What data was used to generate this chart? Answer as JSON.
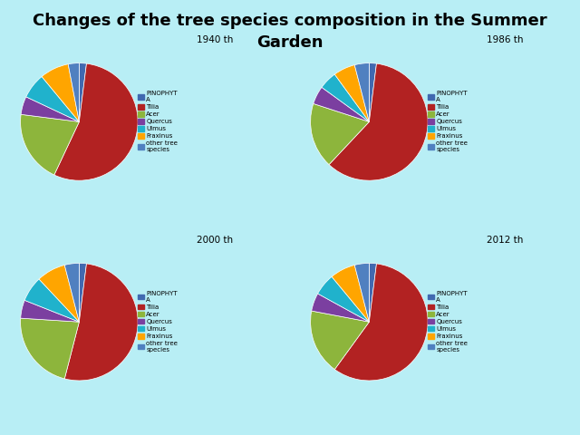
{
  "title": "Changes of the tree species composition in the Summer\nGarden",
  "title_fontsize": 13,
  "background_color": "#b8eef5",
  "charts": [
    {
      "title": "1940 th",
      "values": [
        2,
        55,
        20,
        5,
        7,
        8,
        3
      ]
    },
    {
      "title": "1986 th",
      "values": [
        2,
        60,
        18,
        5,
        5,
        6,
        4
      ]
    },
    {
      "title": "2000 th",
      "values": [
        2,
        52,
        22,
        5,
        7,
        8,
        4
      ]
    },
    {
      "title": "2012 th",
      "values": [
        2,
        58,
        18,
        5,
        6,
        7,
        4
      ]
    }
  ],
  "legend_labels": [
    "PINOPHYT\nA",
    "Tilia",
    "Acer",
    "Quercus",
    "Ulmus",
    "Fraxinus",
    "other tree\nspecies"
  ],
  "slice_colors": [
    "#4169b0",
    "#b22222",
    "#8db53c",
    "#7b3fa0",
    "#20b2cc",
    "#ffa500",
    "#5080c0"
  ]
}
